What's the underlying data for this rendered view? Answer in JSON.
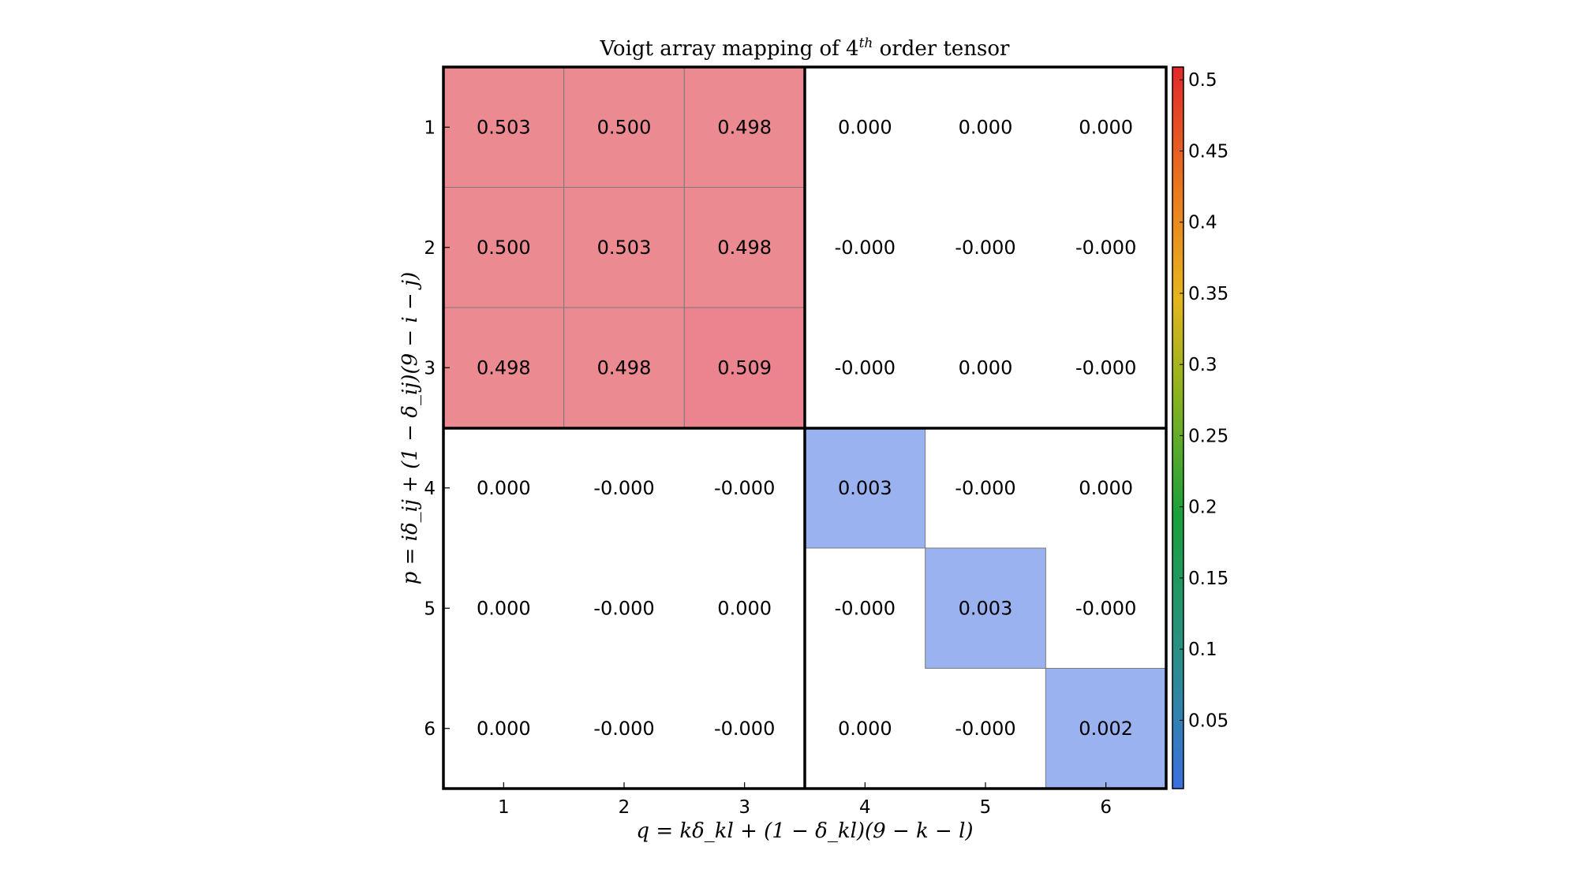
{
  "chart_data": {
    "type": "heatmap",
    "title": "Voigt array mapping of 4",
    "title_sup": "th",
    "title_suffix": " order tensor",
    "xlabel": "q = kδ_kl + (1 − δ_kl)(9 − k − l)",
    "ylabel": "p = iδ_ij + (1 − δ_ij)(9 − i − j)",
    "x_ticks": [
      "1",
      "2",
      "3",
      "4",
      "5",
      "6"
    ],
    "y_ticks": [
      "1",
      "2",
      "3",
      "4",
      "5",
      "6"
    ],
    "labels": [
      [
        "0.503",
        "0.500",
        "0.498",
        "0.000",
        "0.000",
        "0.000"
      ],
      [
        "0.500",
        "0.503",
        "0.498",
        "-0.000",
        "-0.000",
        "-0.000"
      ],
      [
        "0.498",
        "0.498",
        "0.509",
        "-0.000",
        "0.000",
        "-0.000"
      ],
      [
        "0.000",
        "-0.000",
        "-0.000",
        "0.003",
        "-0.000",
        "0.000"
      ],
      [
        "0.000",
        "-0.000",
        "0.000",
        "-0.000",
        "0.003",
        "-0.000"
      ],
      [
        "0.000",
        "-0.000",
        "-0.000",
        "0.000",
        "-0.000",
        "0.002"
      ]
    ],
    "values": [
      [
        0.503,
        0.5,
        0.498,
        0.0,
        0.0,
        0.0
      ],
      [
        0.5,
        0.503,
        0.498,
        0.0,
        0.0,
        0.0
      ],
      [
        0.498,
        0.498,
        0.509,
        0.0,
        0.0,
        0.0
      ],
      [
        0.0,
        0.0,
        0.0,
        0.003,
        0.0,
        0.0
      ],
      [
        0.0,
        0.0,
        0.0,
        0.0,
        0.003,
        0.0
      ],
      [
        0.0,
        0.0,
        0.0,
        0.0,
        0.0,
        0.002
      ]
    ],
    "colorbar": {
      "ticks": [
        "0.5",
        "0.45",
        "0.4",
        "0.35",
        "0.3",
        "0.25",
        "0.2",
        "0.15",
        "0.1",
        "0.05"
      ],
      "tick_values": [
        0.5,
        0.45,
        0.4,
        0.35,
        0.3,
        0.25,
        0.2,
        0.15,
        0.1,
        0.05
      ],
      "range": [
        0.002,
        0.509
      ],
      "colors": [
        "#3b6fe0",
        "#2a9a6a",
        "#1aa03a",
        "#8db31e",
        "#e6b51e",
        "#ea7d1e",
        "#e2282a"
      ]
    },
    "colors": {
      "high_cell": "#eb8a91",
      "low_cell": "#9ab3f0",
      "empty_cell": "#ffffff"
    }
  }
}
